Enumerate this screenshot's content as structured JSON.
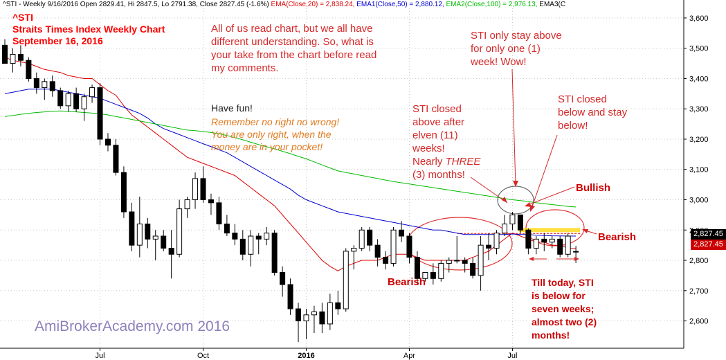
{
  "header": {
    "symbol": "^STI - Weekly 9/16/2016 Open 2829.41, Hi 2847.5, Lo 2791.38, Close 2827.45 (-1.6%)",
    "ema20": "EMA(Close,20) = 2,838.24,",
    "ema50": "EMA1(Close,50) = 2,880.12,",
    "ema100": "EMA2(Close,100) = 2,976.13,",
    "ema3": "EMA3(C"
  },
  "title": {
    "line1": "^STI",
    "line2": "Straits Times Index Weekly Chart",
    "line3": "September 16, 2016"
  },
  "annotations": {
    "intro": "All of us read chart, but we all have different understanding. So, what is your take from the chart before read my comments.",
    "have_fun": "Have fun!",
    "remember": "Remember no right no wrong!\nYou are only right, when the money are in your pocket!",
    "closed_above": "STI closed\nabove after\nelven (11)\nweeks!",
    "nearly_prefix": "Nearly ",
    "nearly_three": "THREE",
    "nearly_suffix": "\n(3) months!",
    "only_one": "STI only stay above\nfor only one (1)\nweek! Wow!",
    "closed_below": "STI closed\nbelow and stay\nbelow!",
    "bullish": "Bullish",
    "bearish_right": "Bearish",
    "bearish_bottom": "Bearish",
    "till_today": "Till today, STI\nis below for\nseven weeks;\nalmost two (2)\nmonths!",
    "watermark": "AmiBrokerAcademy.com  2016"
  },
  "colors": {
    "ema20": "#dd0000",
    "ema50": "#0000cc",
    "ema100": "#00bb00",
    "annotation": "#d62828",
    "title": "#ff0000",
    "watermark": "#7b6bb0",
    "orange_text": "#e07a1f",
    "resistance": "#ffd700",
    "badge_dark": "#000000",
    "badge_red": "#cc0000"
  },
  "price_badges": [
    "2,827.45",
    "2,827.45"
  ],
  "chart_data": {
    "type": "candlestick",
    "x_tick_labels": [
      "Jul",
      "Oct",
      "2016",
      "Apr",
      "Jul"
    ],
    "x_tick_index": [
      12,
      25,
      38,
      51,
      64
    ],
    "y_ticks": [
      2600,
      2700,
      2800,
      2900,
      3000,
      3100,
      3200,
      3300,
      3400,
      3500,
      3600
    ],
    "y_tick_labels": [
      "2,600",
      "2,700",
      "2,800",
      "2,900",
      "3,000",
      "3,100",
      "3,200",
      "3,300",
      "3,400",
      "3,500",
      "3,600"
    ],
    "ylim": [
      2535,
      3625
    ],
    "grid": true,
    "resistance_level": 2900,
    "ohlc": [
      [
        3510,
        3530,
        3460,
        3450
      ],
      [
        3450,
        3500,
        3420,
        3480
      ],
      [
        3480,
        3510,
        3440,
        3460
      ],
      [
        3460,
        3470,
        3390,
        3400
      ],
      [
        3400,
        3420,
        3350,
        3370
      ],
      [
        3370,
        3400,
        3330,
        3390
      ],
      [
        3390,
        3410,
        3340,
        3360
      ],
      [
        3360,
        3370,
        3300,
        3310
      ],
      [
        3310,
        3360,
        3290,
        3350
      ],
      [
        3350,
        3370,
        3290,
        3300
      ],
      [
        3300,
        3350,
        3260,
        3340
      ],
      [
        3340,
        3380,
        3320,
        3370
      ],
      [
        3370,
        3385,
        3180,
        3200
      ],
      [
        3200,
        3220,
        3160,
        3180
      ],
      [
        3180,
        3200,
        3080,
        3090
      ],
      [
        3090,
        3110,
        2940,
        2960
      ],
      [
        2960,
        2990,
        2830,
        2850
      ],
      [
        2850,
        3010,
        2810,
        2920
      ],
      [
        2920,
        2940,
        2840,
        2870
      ],
      [
        2870,
        2900,
        2800,
        2880
      ],
      [
        2880,
        2900,
        2830,
        2840
      ],
      [
        2840,
        2900,
        2740,
        2820
      ],
      [
        2820,
        3000,
        2810,
        2970
      ],
      [
        2970,
        3010,
        2940,
        3000
      ],
      [
        3000,
        3090,
        2970,
        3070
      ],
      [
        3070,
        3110,
        2990,
        3000
      ],
      [
        3000,
        3020,
        2950,
        2990
      ],
      [
        2990,
        3010,
        2900,
        2920
      ],
      [
        2920,
        2950,
        2880,
        2890
      ],
      [
        2890,
        2920,
        2850,
        2870
      ],
      [
        2870,
        2900,
        2800,
        2820
      ],
      [
        2820,
        2900,
        2780,
        2880
      ],
      [
        2880,
        2890,
        2820,
        2870
      ],
      [
        2870,
        2910,
        2850,
        2890
      ],
      [
        2890,
        2900,
        2750,
        2760
      ],
      [
        2760,
        2780,
        2680,
        2720
      ],
      [
        2720,
        2740,
        2620,
        2640
      ],
      [
        2640,
        2660,
        2530,
        2600
      ],
      [
        2600,
        2640,
        2540,
        2620
      ],
      [
        2620,
        2650,
        2560,
        2630
      ],
      [
        2630,
        2660,
        2560,
        2590
      ],
      [
        2590,
        2690,
        2570,
        2660
      ],
      [
        2660,
        2700,
        2620,
        2640
      ],
      [
        2640,
        2840,
        2630,
        2830
      ],
      [
        2830,
        2850,
        2770,
        2840
      ],
      [
        2840,
        2910,
        2830,
        2900
      ],
      [
        2900,
        2910,
        2830,
        2850
      ],
      [
        2850,
        2870,
        2780,
        2810
      ],
      [
        2810,
        2830,
        2770,
        2790
      ],
      [
        2790,
        2910,
        2780,
        2900
      ],
      [
        2900,
        2930,
        2860,
        2880
      ],
      [
        2880,
        2890,
        2790,
        2810
      ],
      [
        2810,
        2830,
        2720,
        2740
      ],
      [
        2740,
        2760,
        2730,
        2760
      ],
      [
        2760,
        2790,
        2720,
        2740
      ],
      [
        2740,
        2800,
        2730,
        2790
      ],
      [
        2790,
        2810,
        2760,
        2800
      ],
      [
        2800,
        2880,
        2790,
        2800
      ],
      [
        2800,
        2810,
        2760,
        2790
      ],
      [
        2790,
        2810,
        2740,
        2750
      ],
      [
        2750,
        2880,
        2700,
        2850
      ],
      [
        2850,
        2890,
        2800,
        2840
      ],
      [
        2840,
        2900,
        2820,
        2890
      ],
      [
        2890,
        2950,
        2880,
        2920
      ],
      [
        2920,
        2960,
        2900,
        2950
      ],
      [
        2950,
        2950,
        2890,
        2900
      ],
      [
        2900,
        2905,
        2820,
        2840
      ],
      [
        2840,
        2880,
        2820,
        2870
      ],
      [
        2870,
        2890,
        2830,
        2860
      ],
      [
        2860,
        2880,
        2840,
        2870
      ],
      [
        2870,
        2880,
        2810,
        2820
      ],
      [
        2820,
        2890,
        2810,
        2880
      ],
      [
        2829.41,
        2847.5,
        2791.38,
        2827.45
      ]
    ],
    "series": [
      {
        "name": "EMA(Close,20)",
        "color": "#dd0000",
        "values": [
          3470,
          3460,
          3455,
          3450,
          3440,
          3430,
          3425,
          3420,
          3410,
          3405,
          3400,
          3400,
          3380,
          3360,
          3345,
          3310,
          3280,
          3260,
          3240,
          3220,
          3200,
          3180,
          3160,
          3140,
          3130,
          3120,
          3110,
          3100,
          3090,
          3080,
          3060,
          3040,
          3020,
          3000,
          2980,
          2950,
          2920,
          2890,
          2860,
          2830,
          2800,
          2780,
          2765,
          2780,
          2790,
          2800,
          2800,
          2800,
          2810,
          2820,
          2820,
          2820,
          2810,
          2800,
          2800,
          2800,
          2800,
          2800,
          2800,
          2810,
          2820,
          2830,
          2850,
          2870,
          2890,
          2880,
          2870,
          2860,
          2860,
          2850,
          2850,
          2840,
          2838.24
        ]
      },
      {
        "name": "EMA1(Close,50)",
        "color": "#0000cc",
        "values": [
          3350,
          3355,
          3360,
          3365,
          3365,
          3365,
          3365,
          3360,
          3355,
          3350,
          3345,
          3340,
          3335,
          3325,
          3315,
          3305,
          3295,
          3285,
          3270,
          3250,
          3235,
          3225,
          3215,
          3205,
          3195,
          3185,
          3175,
          3165,
          3155,
          3140,
          3125,
          3110,
          3095,
          3080,
          3065,
          3050,
          3035,
          3015,
          3000,
          2990,
          2980,
          2970,
          2960,
          2955,
          2950,
          2945,
          2940,
          2935,
          2930,
          2925,
          2920,
          2915,
          2910,
          2905,
          2900,
          2900,
          2895,
          2890,
          2885,
          2885,
          2885,
          2885,
          2885,
          2885,
          2887,
          2885,
          2885,
          2883,
          2882,
          2881,
          2880.5,
          2880.2,
          2880.12
        ]
      },
      {
        "name": "EMA2(Close,100)",
        "color": "#00bb00",
        "values": [
          3275,
          3278,
          3282,
          3285,
          3288,
          3290,
          3292,
          3293,
          3292,
          3290,
          3288,
          3286,
          3284,
          3280,
          3275,
          3270,
          3265,
          3260,
          3255,
          3250,
          3245,
          3240,
          3235,
          3230,
          3228,
          3225,
          3222,
          3218,
          3212,
          3205,
          3198,
          3190,
          3182,
          3175,
          3168,
          3160,
          3152,
          3143,
          3135,
          3125,
          3115,
          3105,
          3095,
          3090,
          3085,
          3080,
          3075,
          3070,
          3065,
          3060,
          3056,
          3052,
          3048,
          3044,
          3040,
          3036,
          3032,
          3028,
          3024,
          3020,
          3016,
          3012,
          3008,
          3004,
          3000,
          2997,
          2994,
          2990,
          2987,
          2984,
          2981,
          2978,
          2976.13
        ]
      }
    ]
  }
}
